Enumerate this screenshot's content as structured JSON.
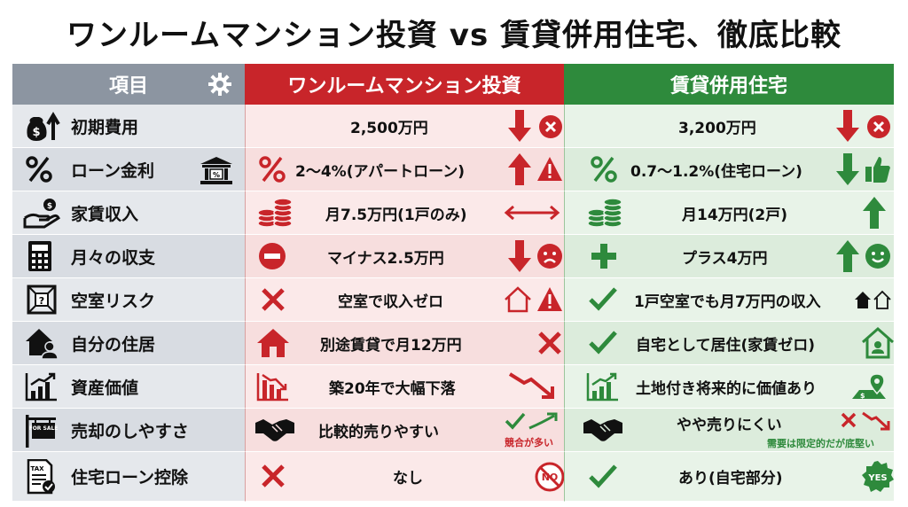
{
  "title": "ワンルームマンション投資 vs 賃貸併用住宅、徹底比較",
  "header": {
    "item": "項目",
    "a": "ワンルームマンション投資",
    "b": "賃貸併用住宅"
  },
  "rows": [
    {
      "label": "初期費用",
      "a": "2,500万円",
      "b": "3,200万円",
      "icon": "money-bag-up-icon"
    },
    {
      "label": "ローン金利",
      "a": "2〜4%(アパートローン)",
      "b": "0.7〜1.2%(住宅ローン)",
      "icon": "percent-bank-icon"
    },
    {
      "label": "家賃収入",
      "a": "月7.5万円(1戸のみ)",
      "b": "月14万円(2戸)",
      "icon": "hand-coin-icon"
    },
    {
      "label": "月々の収支",
      "a": "マイナス2.5万円",
      "b": "プラス4万円",
      "icon": "calculator-icon"
    },
    {
      "label": "空室リスク",
      "a": "空室で収入ゼロ",
      "b": "1戸空室でも月7万円の収入",
      "icon": "vacant-box-icon"
    },
    {
      "label": "自分の住居",
      "a": "別途賃貸で月12万円",
      "b": "自宅として居住(家賃ゼロ)",
      "icon": "house-person-icon"
    },
    {
      "label": "資産価値",
      "a": "築20年で大幅下落",
      "b": "土地付き将来的に価値あり",
      "icon": "growth-chart-icon"
    },
    {
      "label": "売却のしやすさ",
      "a": "比較的売りやすい",
      "b": "やや売りにくい",
      "icon": "for-sale-sign-icon",
      "a_note": "競合が多い",
      "b_note": "需要は限定的だが底堅い",
      "sale_text": "FOR SALE"
    },
    {
      "label": "住宅ローン控除",
      "a": "なし",
      "b": "あり(自宅部分)",
      "icon": "tax-document-icon",
      "tax_text": "TAX",
      "no_text": "NO",
      "yes_text": "YES"
    }
  ],
  "colors": {
    "red": "#c8252a",
    "green": "#2e8a3c",
    "gray": "#8c95a1"
  }
}
